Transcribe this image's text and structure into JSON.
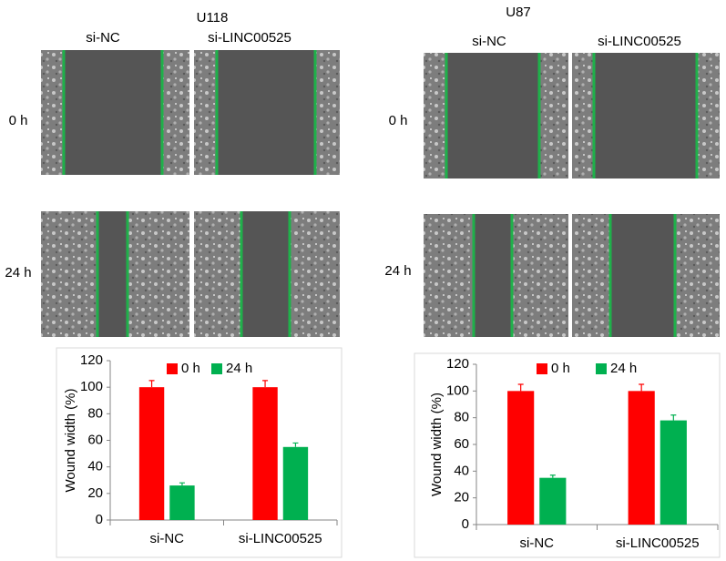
{
  "panels": [
    {
      "title": "U118",
      "columns": [
        "si-NC",
        "si-LINC00525"
      ],
      "rows": [
        "0 h",
        "24 h"
      ]
    },
    {
      "title": "U87",
      "columns": [
        "si-NC",
        "si-LINC00525"
      ],
      "rows": [
        "0 h",
        "24 h"
      ]
    }
  ],
  "chart_data": [
    {
      "type": "bar",
      "ylabel": "Wound width (%)",
      "categories": [
        "si-NC",
        "si-LINC00525"
      ],
      "series": [
        {
          "name": "0 h",
          "color": "#ff0000",
          "values": [
            100,
            100
          ],
          "errors": [
            5,
            5
          ]
        },
        {
          "name": "24 h",
          "color": "#00b050",
          "values": [
            26,
            55
          ],
          "errors": [
            2,
            3
          ]
        }
      ],
      "ylim": [
        0,
        120
      ],
      "yticks": [
        0,
        20,
        40,
        60,
        80,
        100,
        120
      ]
    },
    {
      "type": "bar",
      "ylabel": "Wound width (%)",
      "categories": [
        "si-NC",
        "si-LINC00525"
      ],
      "series": [
        {
          "name": "0 h",
          "color": "#ff0000",
          "values": [
            100,
            100
          ],
          "errors": [
            5,
            5
          ]
        },
        {
          "name": "24 h",
          "color": "#00b050",
          "values": [
            35,
            78
          ],
          "errors": [
            2,
            4
          ]
        }
      ],
      "ylim": [
        0,
        120
      ],
      "yticks": [
        0,
        20,
        40,
        60,
        80,
        100,
        120
      ]
    }
  ]
}
